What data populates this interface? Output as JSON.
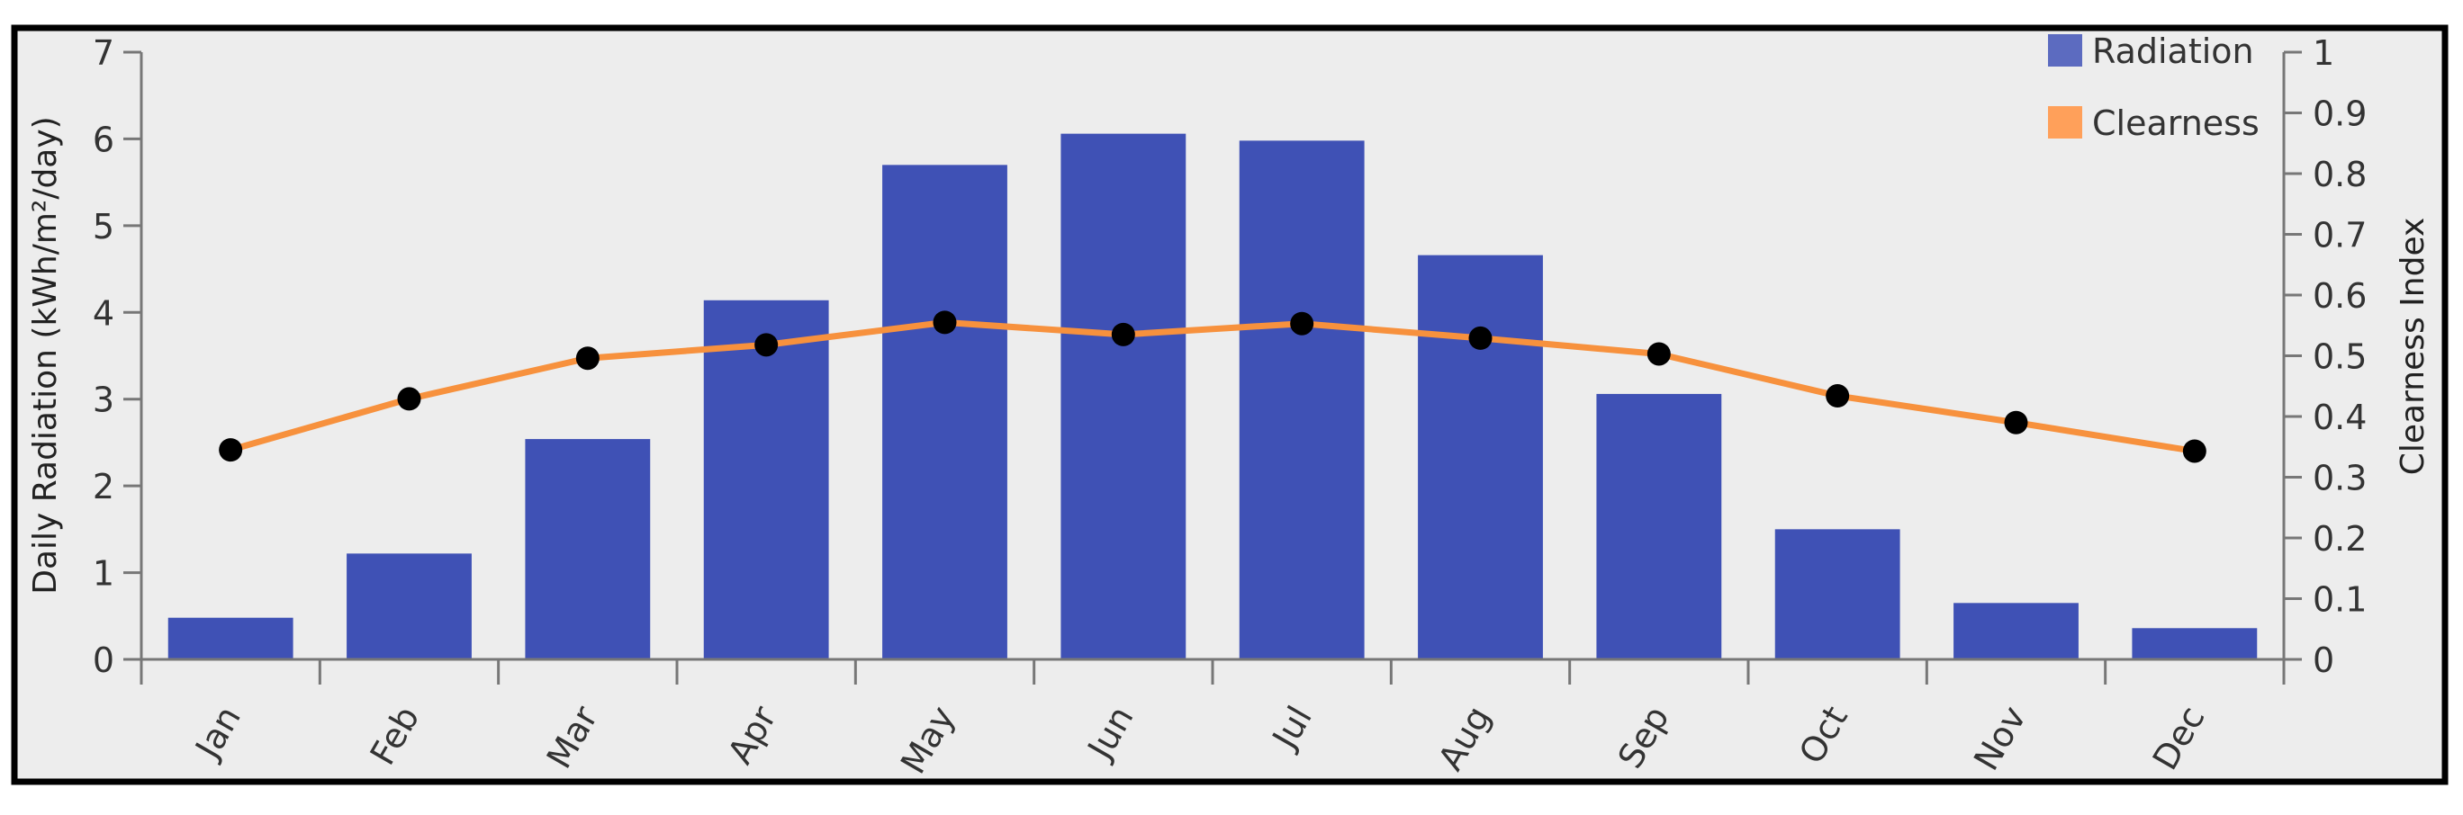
{
  "chart_data": {
    "type": "bar+line",
    "categories": [
      "Jan",
      "Feb",
      "Mar",
      "Apr",
      "May",
      "Jun",
      "Jul",
      "Aug",
      "Sep",
      "Oct",
      "Nov",
      "Dec"
    ],
    "series": [
      {
        "name": "Radiation",
        "type": "bar",
        "axis": "left",
        "color": "#3F51B5",
        "legend_color": "#5C6BC0",
        "values": [
          0.48,
          1.22,
          2.54,
          4.14,
          5.7,
          6.06,
          5.98,
          4.66,
          3.06,
          1.5,
          0.65,
          0.36
        ]
      },
      {
        "name": "Clearness",
        "type": "line",
        "axis": "right",
        "color": "#F7913D",
        "legend_color": "#FFA05A",
        "marker_color": "#000000",
        "values": [
          0.345,
          0.429,
          0.496,
          0.518,
          0.555,
          0.535,
          0.553,
          0.529,
          0.503,
          0.434,
          0.39,
          0.343
        ]
      }
    ],
    "ylabel": "Daily Radiation (kWh/m²/day)",
    "y2label": "Clearness Index",
    "ylim": [
      0,
      7
    ],
    "y2lim": [
      0,
      1
    ],
    "yticks": [
      "0",
      "1",
      "2",
      "3",
      "4",
      "5",
      "6",
      "7"
    ],
    "y2ticks": [
      "0",
      "0.1",
      "0.2",
      "0.3",
      "0.4",
      "0.5",
      "0.6",
      "0.7",
      "0.8",
      "0.9",
      "1"
    ],
    "grid": false,
    "legend": "top-right",
    "background": "#EDEDED"
  }
}
